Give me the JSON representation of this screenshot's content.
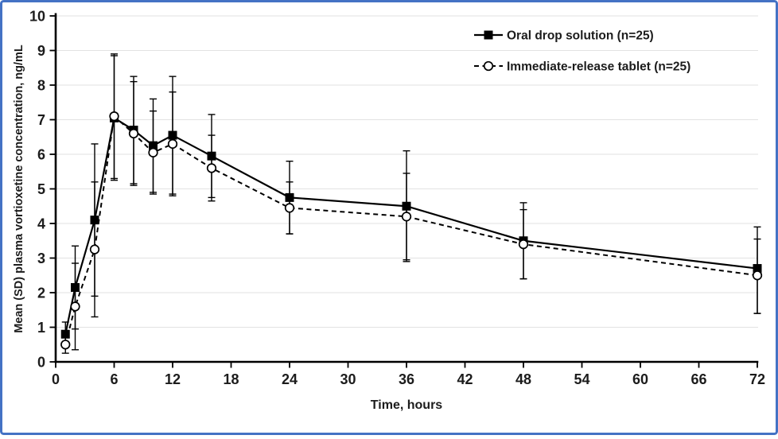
{
  "frame": {
    "border_color": "#4472C4",
    "background": "#ffffff"
  },
  "colors": {
    "grid": "#e2e2e2",
    "axis": "#000000",
    "text": "#1c1c1c",
    "series": "#000000"
  },
  "chart_data": {
    "type": "line",
    "title": "",
    "xlabel": "Time, hours",
    "ylabel": "Mean (SD) plasma vortioxetine concentration, ng/mL",
    "xlim": [
      0,
      72
    ],
    "ylim": [
      0,
      10
    ],
    "x_ticks": [
      0,
      6,
      12,
      18,
      24,
      30,
      36,
      42,
      48,
      54,
      60,
      66,
      72
    ],
    "y_ticks": [
      0,
      1,
      2,
      3,
      4,
      5,
      6,
      7,
      8,
      9,
      10
    ],
    "grid": "horizontal",
    "legend_position": "top-right",
    "x": [
      1,
      2,
      4,
      6,
      8,
      10,
      12,
      16,
      24,
      36,
      48,
      72
    ],
    "series": [
      {
        "name": "Oral drop solution (n=25)",
        "marker": "filled-square",
        "line_style": "solid",
        "color": "#000000",
        "values": [
          0.8,
          2.15,
          4.1,
          7.05,
          6.7,
          6.25,
          6.55,
          5.95,
          4.75,
          4.5,
          3.5,
          2.7
        ],
        "err_low": [
          0.45,
          0.95,
          1.9,
          5.25,
          5.15,
          4.9,
          4.85,
          4.75,
          3.7,
          2.9,
          2.4,
          1.4
        ],
        "err_high": [
          1.15,
          3.35,
          6.3,
          8.85,
          8.25,
          7.6,
          8.25,
          7.15,
          5.8,
          6.1,
          4.6,
          3.9
        ]
      },
      {
        "name": "Immediate-release tablet (n=25)",
        "marker": "open-circle",
        "line_style": "dashed",
        "color": "#000000",
        "values": [
          0.5,
          1.6,
          3.25,
          7.1,
          6.6,
          6.05,
          6.3,
          5.6,
          4.45,
          4.2,
          3.4,
          2.5
        ],
        "err_low": [
          0.25,
          0.35,
          1.3,
          5.3,
          5.1,
          4.85,
          4.8,
          4.65,
          3.7,
          2.95,
          2.4,
          1.4
        ],
        "err_high": [
          0.75,
          2.85,
          5.2,
          8.9,
          8.1,
          7.25,
          7.8,
          6.55,
          5.2,
          5.45,
          4.4,
          3.55
        ]
      }
    ]
  }
}
